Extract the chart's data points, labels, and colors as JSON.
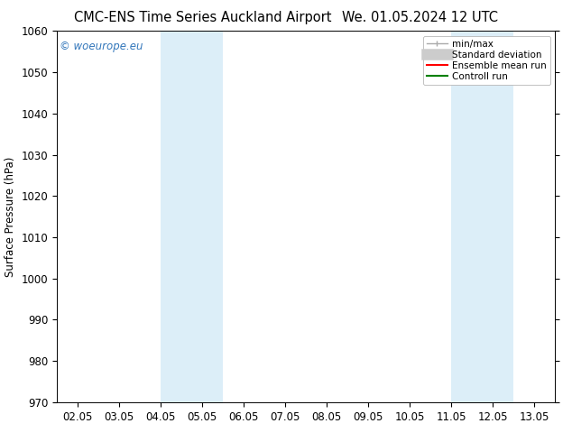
{
  "title_left": "CMC-ENS Time Series Auckland Airport",
  "title_right": "We. 01.05.2024 12 UTC",
  "ylabel": "Surface Pressure (hPa)",
  "ylim": [
    970,
    1060
  ],
  "yticks": [
    970,
    980,
    990,
    1000,
    1010,
    1020,
    1030,
    1040,
    1050,
    1060
  ],
  "xtick_labels": [
    "02.05",
    "03.05",
    "04.05",
    "05.05",
    "06.05",
    "07.05",
    "08.05",
    "09.05",
    "10.05",
    "11.05",
    "12.05",
    "13.05"
  ],
  "xtick_positions": [
    0,
    1,
    2,
    3,
    4,
    5,
    6,
    7,
    8,
    9,
    10,
    11
  ],
  "xlim": [
    -0.5,
    11.5
  ],
  "shaded_bands": [
    {
      "x_start": 2.0,
      "x_end": 3.5,
      "color": "#dceef8"
    },
    {
      "x_start": 9.0,
      "x_end": 10.5,
      "color": "#dceef8"
    }
  ],
  "watermark_text": "© woeurope.eu",
  "watermark_color": "#3377bb",
  "bg_color": "#ffffff",
  "font_size": 8.5,
  "title_font_size": 10.5,
  "legend_labels": [
    "min/max",
    "Standard deviation",
    "Ensemble mean run",
    "Controll run"
  ],
  "legend_colors": [
    "#aaaaaa",
    "#cccccc",
    "#ff0000",
    "#008000"
  ]
}
